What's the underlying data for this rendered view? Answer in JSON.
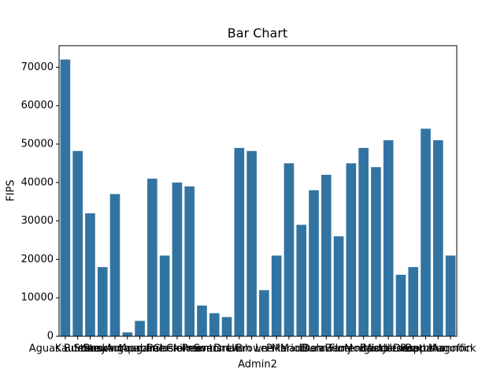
{
  "chart_data": {
    "type": "bar",
    "title": "Bar Chart",
    "x_label": "Admin2",
    "y_label": "FIPS",
    "categories": [
      "Aguas Buenas",
      "Kaufman",
      "Storey",
      "Stewart",
      "Rockingham",
      "Autauga",
      "Apache",
      "Lane",
      "Pulaski",
      "Cherokee",
      "Clermont",
      "Prowers",
      "Sonoma",
      "Drew",
      "Utah",
      "Brown",
      "Lee",
      "Pike",
      "Marion",
      "Madison",
      "Dunn",
      "Delaware",
      "Barry",
      "Florence",
      "Morgan",
      "Bristol",
      "Middlesex",
      "Jerome",
      "Decatur",
      "Barbour",
      "Rappahannock",
      "Magoffin"
    ],
    "values": [
      72000,
      48200,
      32000,
      18000,
      37000,
      1000,
      4000,
      41000,
      21000,
      40000,
      39000,
      8000,
      6000,
      5000,
      49000,
      48200,
      12000,
      21000,
      45000,
      29000,
      38000,
      42000,
      26000,
      45000,
      49000,
      44000,
      51000,
      16000,
      18000,
      54000,
      51000,
      21000
    ],
    "color": "#3274a1",
    "ylim": [
      0,
      75600
    ],
    "yticks": [
      0,
      10000,
      20000,
      30000,
      40000,
      50000,
      60000,
      70000
    ],
    "grid": false
  }
}
